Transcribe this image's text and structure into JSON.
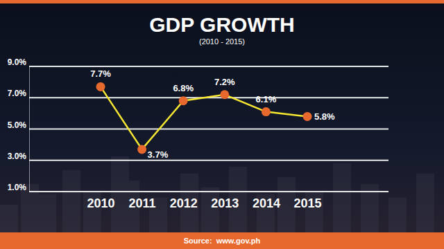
{
  "chart_data": {
    "type": "line",
    "title": "GDP GROWTH",
    "subtitle": "(2010 - 2015)",
    "categories": [
      "2010",
      "2011",
      "2012",
      "2013",
      "2014",
      "2015"
    ],
    "values": [
      7.7,
      3.7,
      6.8,
      7.2,
      6.1,
      5.8
    ],
    "value_labels": [
      "7.7%",
      "3.7%",
      "6.8%",
      "7.2%",
      "6.1%",
      "5.8%"
    ],
    "color": "#f4e631",
    "marker": "circle",
    "data_labels": true,
    "ylim": [
      1,
      9
    ],
    "yticks": [
      {
        "value": 1,
        "label": "1.0%"
      },
      {
        "value": 3,
        "label": "3.0%"
      },
      {
        "value": 5,
        "label": "5.0%"
      },
      {
        "value": 7,
        "label": "7.0%"
      },
      {
        "value": 9,
        "label": "9.0%"
      }
    ],
    "grid": true,
    "source": "Source:  www.gov.ph"
  }
}
